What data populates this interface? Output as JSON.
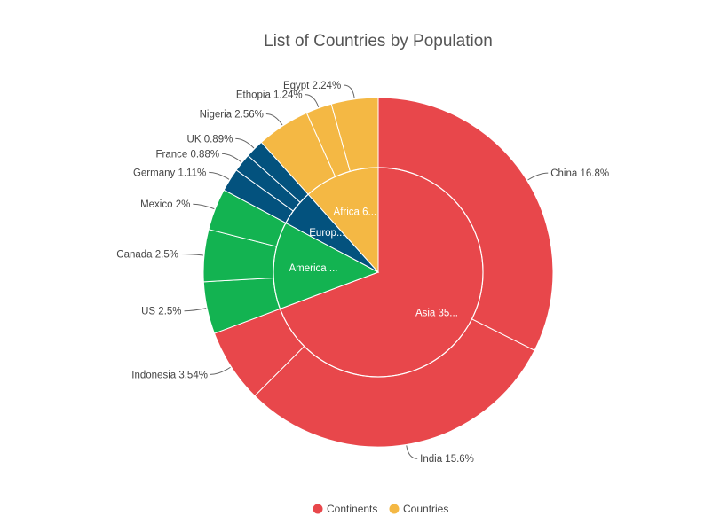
{
  "chart_data": {
    "type": "pie",
    "title": "List of Countries by Population",
    "colors": {
      "Asia": "#E8474B",
      "Africa": "#F4B844",
      "Europe": "#03527E",
      "America": "#13B351",
      "slice_border": "#ffffff"
    },
    "inner": [
      {
        "label": "Asia 35...",
        "group": "Asia",
        "value": 35.94
      },
      {
        "label": "America ...",
        "group": "America",
        "value": 7.0
      },
      {
        "label": "Europ...",
        "group": "Europe",
        "value": 2.88
      },
      {
        "label": "Africa 6...",
        "group": "Africa",
        "value": 6.04
      }
    ],
    "outer": [
      {
        "label": "China 16.8%",
        "group": "Asia",
        "value": 16.8
      },
      {
        "label": "India 15.6%",
        "group": "Asia",
        "value": 15.6
      },
      {
        "label": "Indonesia 3.54%",
        "group": "Asia",
        "value": 3.54
      },
      {
        "label": "US 2.5%",
        "group": "America",
        "value": 2.5
      },
      {
        "label": "Canada 2.5%",
        "group": "America",
        "value": 2.5
      },
      {
        "label": "Mexico 2%",
        "group": "America",
        "value": 2.0
      },
      {
        "label": "Germany 1.11%",
        "group": "Europe",
        "value": 1.11
      },
      {
        "label": "France 0.88%",
        "group": "Europe",
        "value": 0.88
      },
      {
        "label": "UK 0.89%",
        "group": "Europe",
        "value": 0.89
      },
      {
        "label": "Nigeria 2.56%",
        "group": "Africa",
        "value": 2.56
      },
      {
        "label": "Ethopia 1.24%",
        "group": "Africa",
        "value": 1.24
      },
      {
        "label": "Egypt 2.24%",
        "group": "Africa",
        "value": 2.24
      }
    ],
    "legend": {
      "position": "bottom",
      "items": [
        {
          "label": "Continents",
          "color": "#E8474B"
        },
        {
          "label": "Countries",
          "color": "#F4B844"
        }
      ]
    }
  }
}
